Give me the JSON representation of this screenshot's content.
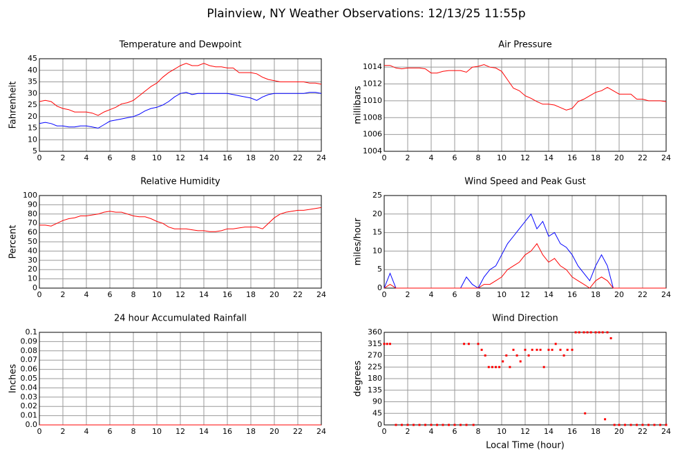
{
  "title": "Plainview, NY Weather Observations: 12/13/25 11:55p",
  "chart_data": [
    {
      "type": "line",
      "title": "Temperature and Dewpoint",
      "ylabel": "Fahrenheit",
      "x": [
        0,
        0.5,
        1,
        1.5,
        2,
        2.5,
        3,
        3.5,
        4,
        4.5,
        5,
        5.5,
        6,
        6.5,
        7,
        7.5,
        8,
        8.5,
        9,
        9.5,
        10,
        10.5,
        11,
        11.5,
        12,
        12.5,
        13,
        13.5,
        14,
        14.5,
        15,
        15.5,
        16,
        16.5,
        17,
        17.5,
        18,
        18.5,
        19,
        19.5,
        20,
        20.5,
        21,
        21.5,
        22,
        22.5,
        23,
        23.5,
        24
      ],
      "series": [
        {
          "color": "#ff0000",
          "values": [
            26.5,
            27,
            26.5,
            24.5,
            23.5,
            23,
            22,
            22,
            22,
            21.5,
            20.5,
            22,
            23,
            24,
            25.5,
            26,
            27,
            29,
            31,
            33,
            34.5,
            37,
            39,
            40.5,
            42,
            43,
            42,
            42,
            43,
            42,
            41.5,
            41.5,
            41,
            41,
            39,
            39,
            39,
            38.5,
            37,
            36,
            35.5,
            35,
            35,
            35,
            35,
            35,
            34.5,
            34.5,
            34
          ]
        },
        {
          "color": "#0000ff",
          "values": [
            17,
            17.5,
            17,
            16,
            16,
            15.5,
            15.5,
            16,
            16,
            15.5,
            15,
            16.5,
            18,
            18.5,
            19,
            19.5,
            20,
            21,
            22.5,
            23.5,
            24,
            25,
            26.5,
            28.5,
            30,
            30.5,
            29.5,
            30,
            30,
            30,
            30,
            30,
            30,
            29.5,
            29,
            28.5,
            28,
            27,
            28.5,
            29.5,
            30,
            30,
            30,
            30,
            30,
            30,
            30.5,
            30.5,
            30
          ]
        }
      ],
      "xlim": [
        0,
        24
      ],
      "xticks": [
        0,
        2,
        4,
        6,
        8,
        10,
        12,
        14,
        16,
        18,
        20,
        22,
        24
      ],
      "ylim": [
        5,
        45
      ],
      "yticks": [
        5,
        10,
        15,
        20,
        25,
        30,
        35,
        40,
        45
      ],
      "grid": true
    },
    {
      "type": "line",
      "title": "Air Pressure",
      "ylabel": "millibars",
      "x": [
        0,
        0.5,
        1,
        1.5,
        2,
        2.5,
        3,
        3.5,
        4,
        4.5,
        5,
        5.5,
        6,
        6.5,
        7,
        7.5,
        8,
        8.5,
        9,
        9.5,
        10,
        10.5,
        11,
        11.5,
        12,
        12.5,
        13,
        13.5,
        14,
        14.5,
        15,
        15.5,
        16,
        16.5,
        17,
        17.5,
        18,
        18.5,
        19,
        19.5,
        20,
        20.5,
        21,
        21.5,
        22,
        22.5,
        23,
        23.5,
        24
      ],
      "series": [
        {
          "color": "#ff0000",
          "values": [
            1014.2,
            1014.2,
            1013.9,
            1013.8,
            1013.9,
            1013.9,
            1013.9,
            1013.8,
            1013.3,
            1013.3,
            1013.5,
            1013.6,
            1013.6,
            1013.6,
            1013.4,
            1014.0,
            1014.1,
            1014.3,
            1014.0,
            1013.9,
            1013.5,
            1012.5,
            1011.5,
            1011.2,
            1010.6,
            1010.3,
            1009.9,
            1009.6,
            1009.6,
            1009.5,
            1009.2,
            1008.9,
            1009.1,
            1009.9,
            1010.2,
            1010.6,
            1011.0,
            1011.2,
            1011.6,
            1011.2,
            1010.8,
            1010.8,
            1010.8,
            1010.2,
            1010.2,
            1010.0,
            1010.0,
            1010.0,
            1009.9
          ]
        }
      ],
      "xlim": [
        0,
        24
      ],
      "xticks": [
        0,
        2,
        4,
        6,
        8,
        10,
        12,
        14,
        16,
        18,
        20,
        22,
        24
      ],
      "ylim": [
        1004,
        1015
      ],
      "yticks": [
        1004,
        1006,
        1008,
        1010,
        1012,
        1014
      ],
      "grid": true
    },
    {
      "type": "line",
      "title": "Relative Humidity",
      "ylabel": "Percent",
      "x": [
        0,
        0.5,
        1,
        1.5,
        2,
        2.5,
        3,
        3.5,
        4,
        4.5,
        5,
        5.5,
        6,
        6.5,
        7,
        7.5,
        8,
        8.5,
        9,
        9.5,
        10,
        10.5,
        11,
        11.5,
        12,
        12.5,
        13,
        13.5,
        14,
        14.5,
        15,
        15.5,
        16,
        16.5,
        17,
        17.5,
        18,
        18.5,
        19,
        19.5,
        20,
        20.5,
        21,
        21.5,
        22,
        22.5,
        23,
        23.5,
        24
      ],
      "series": [
        {
          "color": "#ff0000",
          "values": [
            68,
            68,
            67,
            70,
            73,
            75,
            76,
            78,
            78,
            79,
            80,
            82,
            83,
            82,
            82,
            80,
            78,
            77,
            77,
            75,
            72,
            70,
            66,
            64,
            64,
            64,
            63,
            62,
            62,
            61,
            61,
            62,
            64,
            64,
            65,
            66,
            66,
            66,
            64,
            70,
            76,
            80,
            82,
            83,
            84,
            84,
            85,
            86,
            87
          ]
        }
      ],
      "xlim": [
        0,
        24
      ],
      "xticks": [
        0,
        2,
        4,
        6,
        8,
        10,
        12,
        14,
        16,
        18,
        20,
        22,
        24
      ],
      "ylim": [
        0,
        100
      ],
      "yticks": [
        0,
        10,
        20,
        30,
        40,
        50,
        60,
        70,
        80,
        90,
        100
      ],
      "grid": true
    },
    {
      "type": "line",
      "title": "Wind Speed and Peak Gust",
      "ylabel": "miles/hour",
      "x": [
        0,
        0.5,
        1,
        1.5,
        2,
        2.5,
        3,
        3.5,
        4,
        4.5,
        5,
        5.5,
        6,
        6.5,
        7,
        7.5,
        8,
        8.5,
        9,
        9.5,
        10,
        10.5,
        11,
        11.5,
        12,
        12.5,
        13,
        13.5,
        14,
        14.5,
        15,
        15.5,
        16,
        16.5,
        17,
        17.5,
        18,
        18.5,
        19,
        19.5,
        20,
        20.5,
        21,
        21.5,
        22,
        22.5,
        23,
        23.5,
        24
      ],
      "series": [
        {
          "color": "#0000ff",
          "values": [
            0,
            4,
            0,
            0,
            0,
            0,
            0,
            0,
            0,
            0,
            0,
            0,
            0,
            0,
            3,
            1,
            0,
            3,
            5,
            6,
            9,
            12,
            14,
            16,
            18,
            20,
            16,
            18,
            14,
            15,
            12,
            11,
            9,
            6,
            4,
            2,
            6,
            9,
            6,
            0,
            0,
            0,
            0,
            0,
            0,
            0,
            0,
            0,
            0
          ]
        },
        {
          "color": "#ff0000",
          "values": [
            0,
            1,
            0,
            0,
            0,
            0,
            0,
            0,
            0,
            0,
            0,
            0,
            0,
            0,
            0,
            0,
            0,
            1,
            1,
            2,
            3,
            5,
            6,
            7,
            9,
            10,
            12,
            9,
            7,
            8,
            6,
            5,
            3,
            2,
            1,
            0,
            2,
            3,
            2,
            0,
            0,
            0,
            0,
            0,
            0,
            0,
            0,
            0,
            0
          ]
        }
      ],
      "xlim": [
        0,
        24
      ],
      "xticks": [
        0,
        2,
        4,
        6,
        8,
        10,
        12,
        14,
        16,
        18,
        20,
        22,
        24
      ],
      "ylim": [
        0,
        25
      ],
      "yticks": [
        0,
        5,
        10,
        15,
        20,
        25
      ],
      "grid": true
    },
    {
      "type": "line",
      "title": "24 hour Accumulated Rainfall",
      "ylabel": "Inches",
      "x": [
        0,
        24
      ],
      "series": [
        {
          "color": "#ff0000",
          "values": [
            0,
            0
          ]
        }
      ],
      "xlim": [
        0,
        24
      ],
      "xticks": [
        0,
        2,
        4,
        6,
        8,
        10,
        12,
        14,
        16,
        18,
        20,
        22,
        24
      ],
      "ylim": [
        0,
        0.1
      ],
      "yticks": [
        {
          "value": 0,
          "label": "0.0"
        },
        0.01,
        0.02,
        0.03,
        0.04,
        0.05,
        0.06,
        0.07,
        0.08,
        0.09,
        0.1
      ],
      "grid": true
    },
    {
      "type": "scatter",
      "title": "Wind Direction",
      "ylabel": "degrees",
      "xlabel": "Local Time (hour)",
      "x": [
        0,
        0.25,
        0.5,
        1,
        1.5,
        2,
        2.5,
        3,
        3.5,
        4,
        4.5,
        5,
        5.5,
        6,
        6.5,
        7,
        6.8,
        7.2,
        7.6,
        8,
        8.3,
        8.6,
        8.9,
        9.2,
        9.5,
        9.8,
        10.1,
        10.4,
        10.7,
        11,
        11.3,
        11.6,
        12,
        12.3,
        12.6,
        13,
        13.3,
        13.6,
        14,
        14.3,
        14.6,
        15,
        15.3,
        15.6,
        16,
        16.3,
        16.6,
        17,
        17.3,
        17.6,
        18,
        18.3,
        18.6,
        19,
        19.3,
        17.1,
        18.8,
        19.6,
        20,
        20.5,
        21,
        21.5,
        22,
        22.5,
        23,
        23.5,
        24
      ],
      "values": [
        315,
        315,
        315,
        0,
        0,
        0,
        0,
        0,
        0,
        0,
        0,
        0,
        0,
        0,
        0,
        0,
        315,
        315,
        0,
        315,
        292,
        270,
        225,
        225,
        225,
        225,
        247,
        270,
        225,
        292,
        270,
        247,
        292,
        270,
        292,
        292,
        292,
        225,
        292,
        292,
        315,
        292,
        270,
        292,
        292,
        360,
        360,
        360,
        360,
        360,
        360,
        360,
        360,
        360,
        337,
        45,
        22,
        0,
        0,
        0,
        0,
        0,
        0,
        0,
        0,
        0,
        0
      ],
      "color": "#ff0000",
      "xlim": [
        0,
        24
      ],
      "xticks": [
        0,
        2,
        4,
        6,
        8,
        10,
        12,
        14,
        16,
        18,
        20,
        22,
        24
      ],
      "ylim": [
        0,
        360
      ],
      "yticks": [
        0,
        45,
        90,
        135,
        180,
        225,
        270,
        315,
        360
      ],
      "grid": true
    }
  ]
}
